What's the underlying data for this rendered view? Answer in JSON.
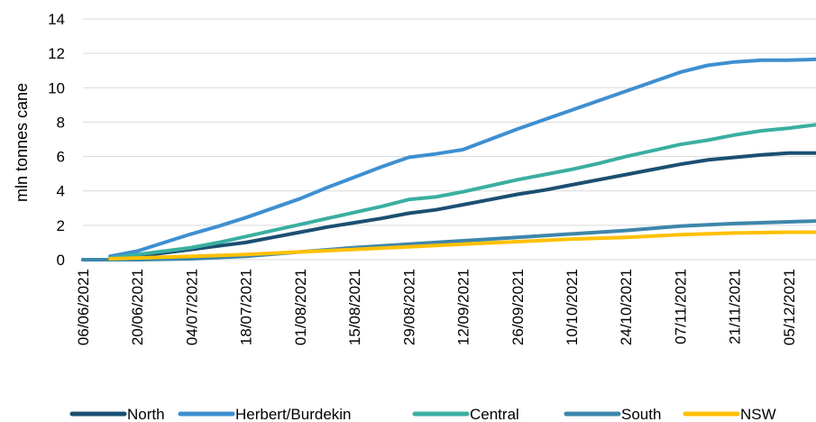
{
  "chart_data": {
    "type": "line",
    "title": "",
    "xlabel": "",
    "ylabel": "mln tonnes cane",
    "ylim": [
      0,
      14
    ],
    "yticks": [
      0,
      2,
      4,
      6,
      8,
      10,
      12,
      14
    ],
    "grid": "horizontal",
    "legend_position": "bottom",
    "x_start": "06/06/2021",
    "x_end": "12/12/2021",
    "x_tick_labels": [
      "06/06/2021",
      "20/06/2021",
      "04/07/2021",
      "18/07/2021",
      "01/08/2021",
      "15/08/2021",
      "29/08/2021",
      "12/09/2021",
      "26/09/2021",
      "10/10/2021",
      "24/10/2021",
      "07/11/2021",
      "21/11/2021",
      "05/12/2021"
    ],
    "series": [
      {
        "name": "North",
        "color": "#1B4F72",
        "points": [
          [
            "06/06/2021",
            0
          ],
          [
            "13/06/2021",
            0
          ],
          [
            "20/06/2021",
            0.2
          ],
          [
            "27/06/2021",
            0.4
          ],
          [
            "04/07/2021",
            0.6
          ],
          [
            "11/07/2021",
            0.8
          ],
          [
            "18/07/2021",
            1.0
          ],
          [
            "25/07/2021",
            1.3
          ],
          [
            "01/08/2021",
            1.6
          ],
          [
            "08/08/2021",
            1.9
          ],
          [
            "15/08/2021",
            2.15
          ],
          [
            "22/08/2021",
            2.4
          ],
          [
            "29/08/2021",
            2.7
          ],
          [
            "05/09/2021",
            2.9
          ],
          [
            "12/09/2021",
            3.2
          ],
          [
            "19/09/2021",
            3.5
          ],
          [
            "26/09/2021",
            3.8
          ],
          [
            "03/10/2021",
            4.05
          ],
          [
            "10/10/2021",
            4.35
          ],
          [
            "17/10/2021",
            4.65
          ],
          [
            "24/10/2021",
            4.95
          ],
          [
            "31/10/2021",
            5.25
          ],
          [
            "07/11/2021",
            5.55
          ],
          [
            "14/11/2021",
            5.8
          ],
          [
            "21/11/2021",
            5.95
          ],
          [
            "28/11/2021",
            6.1
          ],
          [
            "05/12/2021",
            6.2
          ],
          [
            "12/12/2021",
            6.2
          ]
        ]
      },
      {
        "name": "Herbert/Burdekin",
        "color": "#3E8FD0",
        "points": [
          [
            "13/06/2021",
            0.2
          ],
          [
            "20/06/2021",
            0.5
          ],
          [
            "27/06/2021",
            1.0
          ],
          [
            "04/07/2021",
            1.5
          ],
          [
            "11/07/2021",
            1.95
          ],
          [
            "18/07/2021",
            2.45
          ],
          [
            "25/07/2021",
            3.0
          ],
          [
            "01/08/2021",
            3.55
          ],
          [
            "08/08/2021",
            4.2
          ],
          [
            "15/08/2021",
            4.8
          ],
          [
            "22/08/2021",
            5.4
          ],
          [
            "29/08/2021",
            5.95
          ],
          [
            "05/09/2021",
            6.15
          ],
          [
            "12/09/2021",
            6.4
          ],
          [
            "19/09/2021",
            7.0
          ],
          [
            "26/09/2021",
            7.6
          ],
          [
            "03/10/2021",
            8.15
          ],
          [
            "10/10/2021",
            8.7
          ],
          [
            "17/10/2021",
            9.25
          ],
          [
            "24/10/2021",
            9.8
          ],
          [
            "31/10/2021",
            10.35
          ],
          [
            "07/11/2021",
            10.9
          ],
          [
            "14/11/2021",
            11.3
          ],
          [
            "21/11/2021",
            11.5
          ],
          [
            "28/11/2021",
            11.6
          ],
          [
            "05/12/2021",
            11.6
          ],
          [
            "12/12/2021",
            11.65
          ]
        ]
      },
      {
        "name": "Central",
        "color": "#3AAFA0",
        "points": [
          [
            "13/06/2021",
            0.1
          ],
          [
            "20/06/2021",
            0.3
          ],
          [
            "27/06/2021",
            0.5
          ],
          [
            "04/07/2021",
            0.7
          ],
          [
            "11/07/2021",
            1.0
          ],
          [
            "18/07/2021",
            1.35
          ],
          [
            "25/07/2021",
            1.7
          ],
          [
            "01/08/2021",
            2.05
          ],
          [
            "08/08/2021",
            2.4
          ],
          [
            "15/08/2021",
            2.75
          ],
          [
            "22/08/2021",
            3.1
          ],
          [
            "29/08/2021",
            3.5
          ],
          [
            "05/09/2021",
            3.65
          ],
          [
            "12/09/2021",
            3.95
          ],
          [
            "19/09/2021",
            4.3
          ],
          [
            "26/09/2021",
            4.65
          ],
          [
            "03/10/2021",
            4.95
          ],
          [
            "10/10/2021",
            5.25
          ],
          [
            "17/10/2021",
            5.6
          ],
          [
            "24/10/2021",
            6.0
          ],
          [
            "31/10/2021",
            6.35
          ],
          [
            "07/11/2021",
            6.7
          ],
          [
            "14/11/2021",
            6.95
          ],
          [
            "21/11/2021",
            7.25
          ],
          [
            "28/11/2021",
            7.5
          ],
          [
            "05/12/2021",
            7.65
          ],
          [
            "12/12/2021",
            7.85
          ]
        ]
      },
      {
        "name": "South",
        "color": "#3D86AB",
        "points": [
          [
            "06/06/2021",
            0
          ],
          [
            "20/06/2021",
            0
          ],
          [
            "04/07/2021",
            0.05
          ],
          [
            "18/07/2021",
            0.2
          ],
          [
            "01/08/2021",
            0.45
          ],
          [
            "15/08/2021",
            0.7
          ],
          [
            "29/08/2021",
            0.9
          ],
          [
            "12/09/2021",
            1.1
          ],
          [
            "26/09/2021",
            1.3
          ],
          [
            "10/10/2021",
            1.5
          ],
          [
            "24/10/2021",
            1.7
          ],
          [
            "07/11/2021",
            1.95
          ],
          [
            "21/11/2021",
            2.1
          ],
          [
            "05/12/2021",
            2.2
          ],
          [
            "12/12/2021",
            2.25
          ]
        ]
      },
      {
        "name": "NSW",
        "color": "#FFC000",
        "points": [
          [
            "13/06/2021",
            0.05
          ],
          [
            "20/06/2021",
            0.1
          ],
          [
            "04/07/2021",
            0.2
          ],
          [
            "18/07/2021",
            0.3
          ],
          [
            "01/08/2021",
            0.45
          ],
          [
            "15/08/2021",
            0.6
          ],
          [
            "29/08/2021",
            0.75
          ],
          [
            "12/09/2021",
            0.9
          ],
          [
            "26/09/2021",
            1.05
          ],
          [
            "10/10/2021",
            1.2
          ],
          [
            "24/10/2021",
            1.3
          ],
          [
            "07/11/2021",
            1.45
          ],
          [
            "21/11/2021",
            1.55
          ],
          [
            "05/12/2021",
            1.6
          ],
          [
            "12/12/2021",
            1.6
          ]
        ]
      }
    ]
  }
}
